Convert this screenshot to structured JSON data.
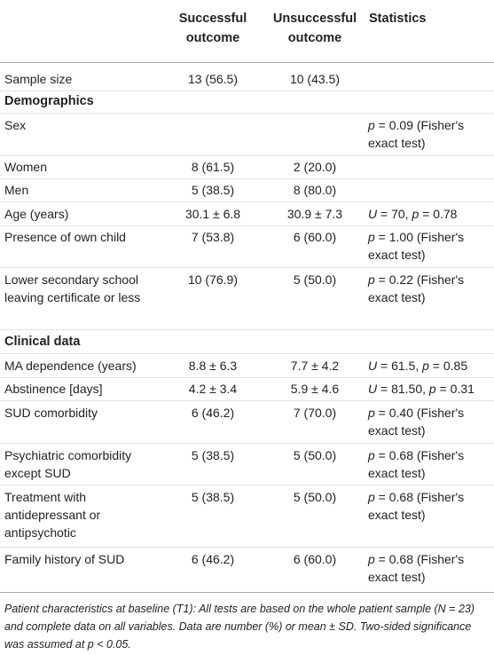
{
  "headers": {
    "successful": "Successful outcome",
    "unsuccessful": "Unsuccessful outcome",
    "statistics": "Statistics"
  },
  "rows": {
    "sample_size": {
      "label": "Sample size",
      "successful": "13 (56.5)",
      "unsuccessful": "10 (43.5)",
      "stat": ""
    },
    "demographics_title": "Demographics",
    "sex": {
      "label": "Sex",
      "successful": "",
      "unsuccessful": "",
      "stat_prefix": "p",
      "stat_rest": " = 0.09 (Fisher's exact test)"
    },
    "women": {
      "label": "Women",
      "successful": "8 (61.5)",
      "unsuccessful": "2 (20.0)"
    },
    "men": {
      "label": "Men",
      "successful": "5 (38.5)",
      "unsuccessful": "8 (80.0)"
    },
    "age": {
      "label": "Age (years)",
      "successful": "30.1 ± 6.8",
      "unsuccessful": "30.9 ± 7.3",
      "stat_u": "U",
      "stat_mid": " = 70, ",
      "stat_p": "p",
      "stat_end": " = 0.78"
    },
    "child": {
      "label": "Presence of own child",
      "successful": "7 (53.8)",
      "unsuccessful": "6 (60.0)",
      "stat_prefix": "p",
      "stat_rest": " = 1.00 (Fisher's exact test)"
    },
    "school": {
      "label": "Lower secondary school leaving certificate or less",
      "successful": "10 (76.9)",
      "unsuccessful": "5 (50.0)",
      "stat_prefix": "p",
      "stat_rest": " = 0.22 (Fisher's exact test)"
    },
    "clinical_title": "Clinical data",
    "ma": {
      "label": "MA dependence (years)",
      "successful": "8.8 ± 6.3",
      "unsuccessful": "7.7 ± 4.2",
      "stat_u": "U",
      "stat_mid": " = 61.5, ",
      "stat_p": "p",
      "stat_end": " = 0.85"
    },
    "abstinence": {
      "label": "Abstinence [days]",
      "successful": "4.2 ± 3.4",
      "unsuccessful": "5.9 ± 4.6",
      "stat_u": "U",
      "stat_mid": " = 81.50, ",
      "stat_p": "p",
      "stat_end": " = 0.31"
    },
    "sud": {
      "label": "SUD comorbidity",
      "successful": "6 (46.2)",
      "unsuccessful": "7 (70.0)",
      "stat_prefix": "p",
      "stat_rest": " = 0.40 (Fisher's exact test)"
    },
    "psych": {
      "label": "Psychiatric comorbidity except SUD",
      "successful": "5 (38.5)",
      "unsuccessful": "5 (50.0)",
      "stat_prefix": "p",
      "stat_rest": " = 0.68 (Fisher's exact test)"
    },
    "treatment": {
      "label": "Treatment with antidepressant or antipsychotic",
      "successful": "5 (38.5)",
      "unsuccessful": "5 (50.0)",
      "stat_prefix": "p",
      "stat_rest": " = 0.68 (Fisher's exact test)"
    },
    "family": {
      "label": "Family history of SUD",
      "successful": "6 (46.2)",
      "unsuccessful": "6 (60.0)",
      "stat_prefix": "p",
      "stat_rest": " = 0.68 (Fisher's exact test)"
    }
  },
  "footnote": "Patient characteristics at baseline (T1): All tests are based on the whole patient sample (N = 23) and complete data on all variables. Data are number (%) or mean ± SD. Two-sided significance was assumed at p < 0.05."
}
